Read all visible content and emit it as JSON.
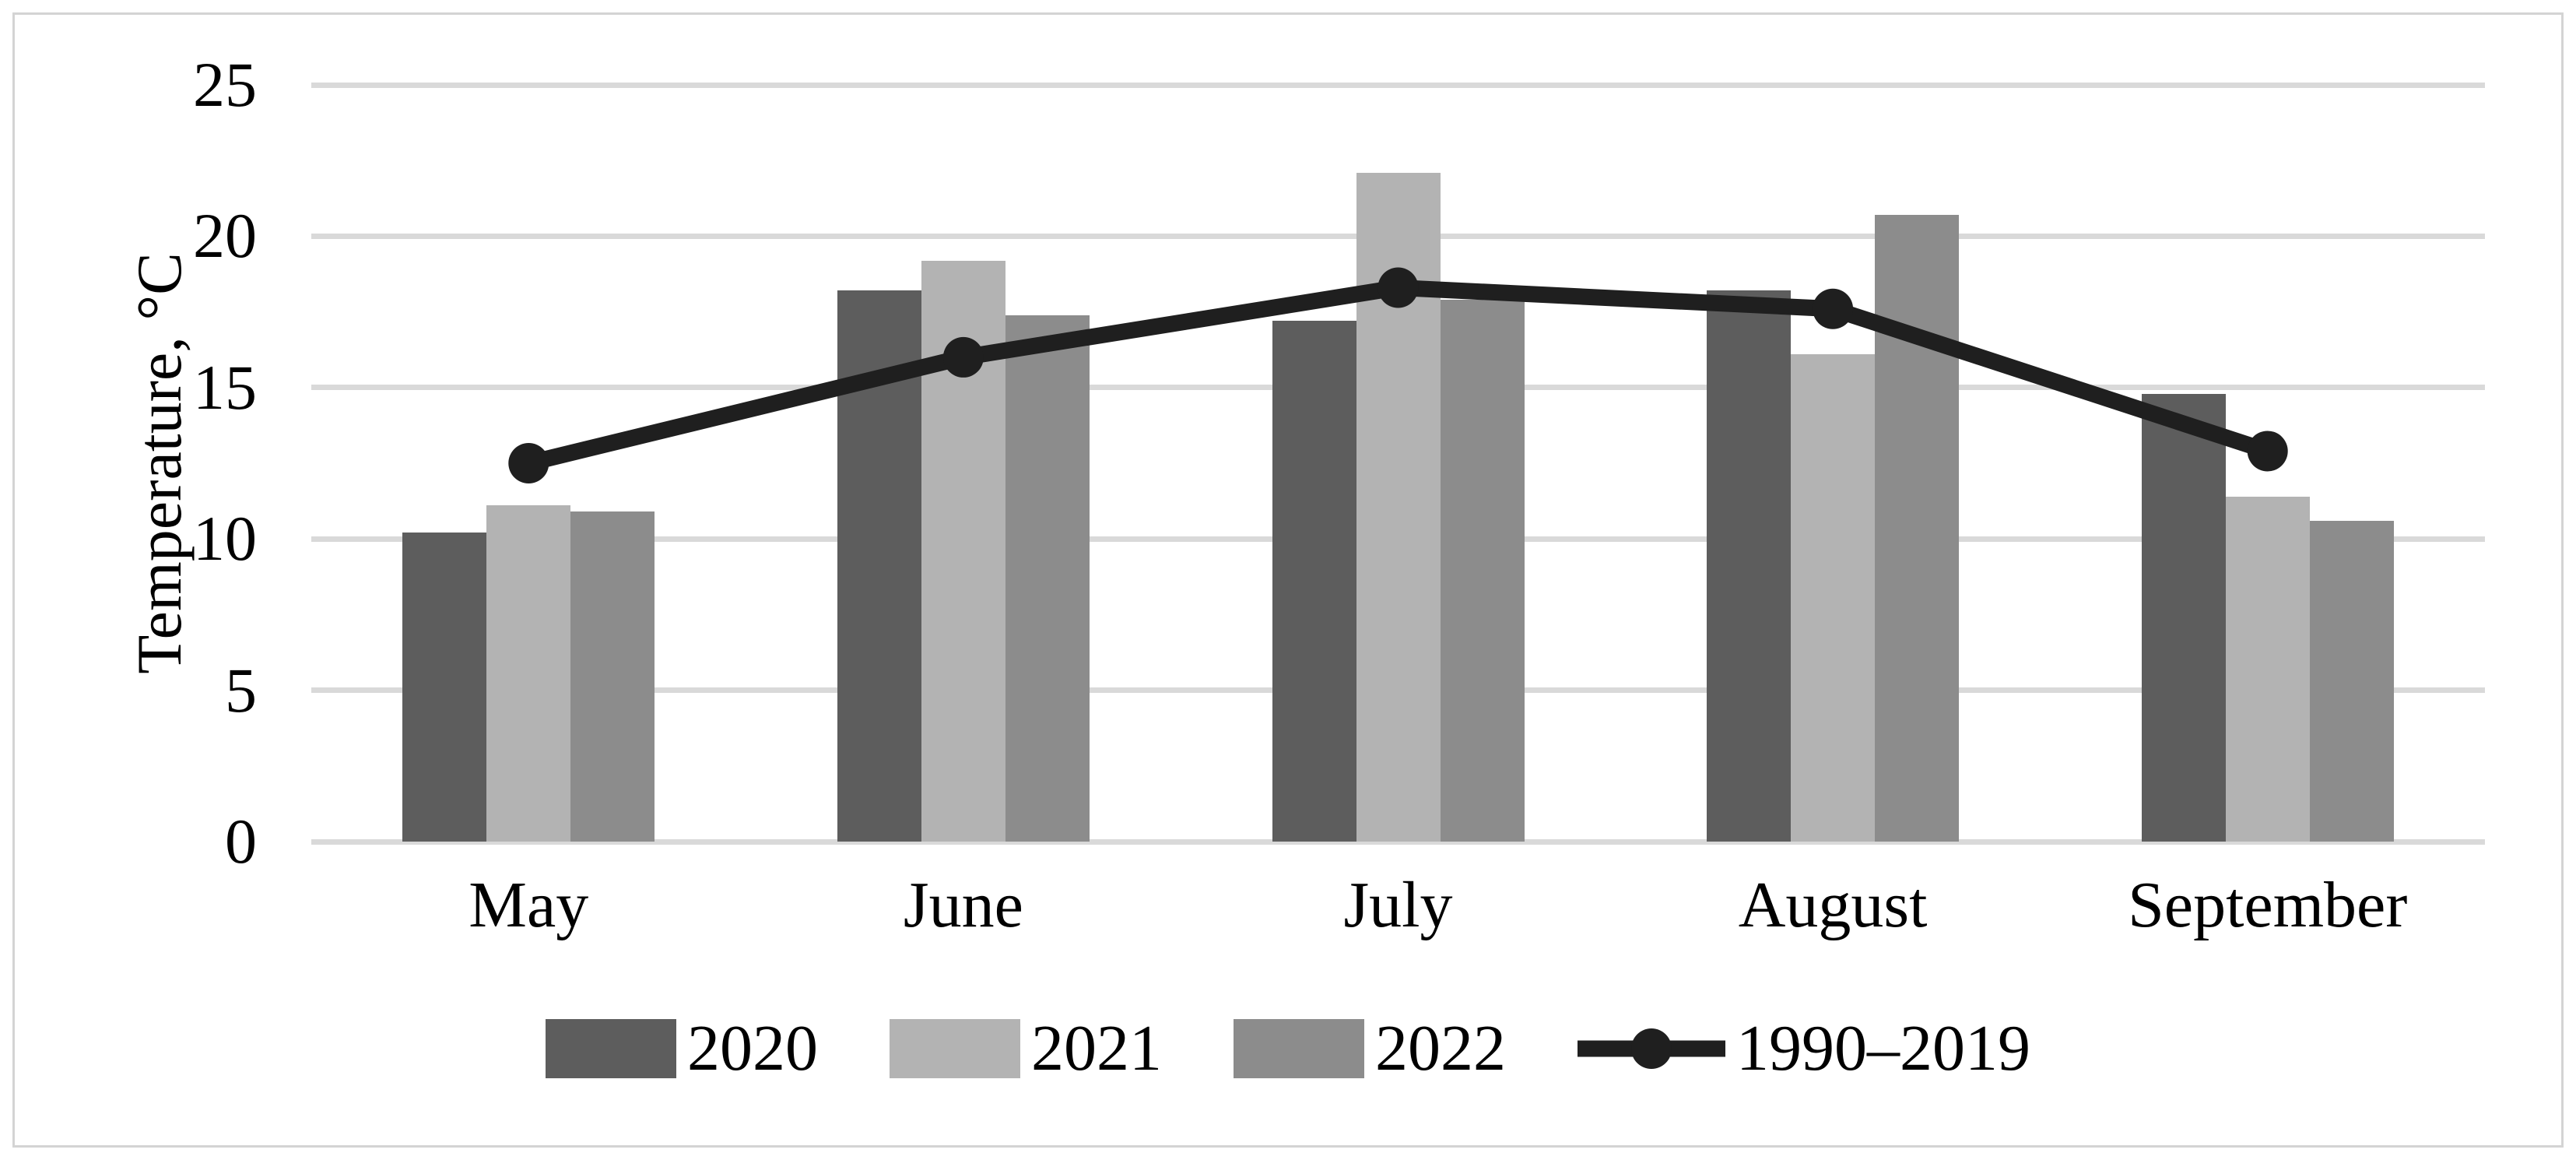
{
  "figure": {
    "background": "#ffffff",
    "border_color": "#d4d4d4"
  },
  "chart_data": {
    "type": "bar",
    "subtype": "grouped bars with line overlay",
    "title": "",
    "xlabel": "",
    "ylabel": "Temperature, °C",
    "categories": [
      "May",
      "June",
      "July",
      "August",
      "September"
    ],
    "series": [
      {
        "name": "2020",
        "type": "bar",
        "color": "#5d5d5d",
        "values": [
          10.2,
          18.2,
          17.2,
          18.2,
          14.8
        ]
      },
      {
        "name": "2021",
        "type": "bar",
        "color": "#b3b3b3",
        "values": [
          11.1,
          19.2,
          22.1,
          16.1,
          11.4
        ]
      },
      {
        "name": "2022",
        "type": "bar",
        "color": "#8c8c8c",
        "values": [
          10.9,
          17.4,
          17.9,
          20.7,
          10.6
        ]
      },
      {
        "name": "1990–2019",
        "type": "line",
        "color": "#1f1f1f",
        "values": [
          12.5,
          16.0,
          18.3,
          17.6,
          12.9
        ]
      }
    ],
    "ylim": [
      0,
      25
    ],
    "yticks": [
      0,
      5,
      10,
      15,
      20,
      25
    ],
    "grid": true,
    "gridline_color": "#d9d9d9",
    "legend_position": "bottom",
    "legend_labels": [
      "2020",
      "2021",
      "2022",
      "1990–2019"
    ]
  }
}
